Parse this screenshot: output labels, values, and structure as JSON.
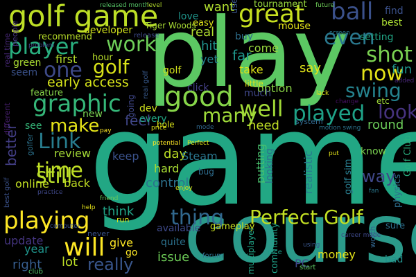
{
  "background": "#000000",
  "words": [
    {
      "text": "game",
      "color": "#22a784"
    },
    {
      "text": "play",
      "color": "#5cc863"
    },
    {
      "text": "course",
      "color": "#2b9a8a"
    },
    {
      "text": "golf game",
      "color": "#bddf26"
    },
    {
      "text": "great",
      "color": "#c7e020"
    },
    {
      "text": "good",
      "color": "#86d549"
    },
    {
      "text": "ball",
      "color": "#3b518b"
    },
    {
      "text": "player",
      "color": "#29af7f"
    },
    {
      "text": "work",
      "color": "#6ece58"
    },
    {
      "text": "one",
      "color": "#3e4a89"
    },
    {
      "text": "golf",
      "color": "#d8e219"
    },
    {
      "text": "graphic",
      "color": "#35b779"
    },
    {
      "text": "well",
      "color": "#a2da37"
    },
    {
      "text": "even",
      "color": "#2a788e"
    },
    {
      "text": "shot",
      "color": "#7ad151"
    },
    {
      "text": "now",
      "color": "#e5e419"
    },
    {
      "text": "swing",
      "color": "#25838e"
    },
    {
      "text": "played",
      "color": "#1fa287"
    },
    {
      "text": "look",
      "color": "#46337f"
    },
    {
      "text": "make",
      "color": "#e5e419"
    },
    {
      "text": "Link",
      "color": "#287d8e"
    },
    {
      "text": "many",
      "color": "#9fda3a"
    },
    {
      "text": "time",
      "color": "#c0df25"
    },
    {
      "text": "still",
      "color": "#b8de29"
    },
    {
      "text": "will",
      "color": "#fde725"
    },
    {
      "text": "playing",
      "color": "#fde725"
    },
    {
      "text": "thing",
      "color": "#31688e"
    },
    {
      "text": "Perfect Golf",
      "color": "#c2df23"
    },
    {
      "text": "really",
      "color": "#39568c"
    },
    {
      "text": "way",
      "color": "#3f4788"
    },
    {
      "text": "early access",
      "color": "#d5e21a"
    },
    {
      "text": "first",
      "color": "#b5de2b"
    },
    {
      "text": "better",
      "color": "#433e85"
    },
    {
      "text": "want",
      "color": "#b0dd2f"
    },
    {
      "text": "real",
      "color": "#b0dd2f"
    },
    {
      "text": "hit",
      "color": "#20928c"
    },
    {
      "text": "yet",
      "color": "#26828e"
    },
    {
      "text": "far",
      "color": "#1f968b"
    },
    {
      "text": "come",
      "color": "#99d83d"
    },
    {
      "text": "take",
      "color": "#dde318"
    },
    {
      "text": "say",
      "color": "#e2e418"
    },
    {
      "text": "fun",
      "color": "#1f948c"
    },
    {
      "text": "feel",
      "color": "#404688"
    },
    {
      "text": "need",
      "color": "#c0df25"
    },
    {
      "text": "review",
      "color": "#a5db36"
    },
    {
      "text": "round",
      "color": "#6ccd5a"
    },
    {
      "text": "hard",
      "color": "#a8db34"
    },
    {
      "text": "day",
      "color": "#bddf26"
    },
    {
      "text": "Steam",
      "color": "#2a768e"
    },
    {
      "text": "keep",
      "color": "#3b528b"
    },
    {
      "text": "back",
      "color": "#c2df23"
    },
    {
      "text": "online",
      "color": "#c2df23"
    },
    {
      "text": "control",
      "color": "#2c718e"
    },
    {
      "text": "think",
      "color": "#20a386"
    },
    {
      "text": "putting",
      "color": "#4ac16d"
    },
    {
      "text": "looking",
      "color": "#2d718e"
    },
    {
      "text": "realistic",
      "color": "#287c8e"
    },
    {
      "text": "know",
      "color": "#7ad151"
    },
    {
      "text": "give",
      "color": "#fde725"
    },
    {
      "text": "quite",
      "color": "#2c728e"
    },
    {
      "text": "go",
      "color": "#fde725"
    },
    {
      "text": "issue",
      "color": "#6ece58"
    },
    {
      "text": "lot",
      "color": "#bddf26"
    },
    {
      "text": "year",
      "color": "#1f948c"
    },
    {
      "text": "right",
      "color": "#365d8d"
    },
    {
      "text": "update",
      "color": "#453581"
    },
    {
      "text": "money",
      "color": "#e5e419"
    },
    {
      "text": "PC",
      "color": "#3f4889"
    },
    {
      "text": "bad",
      "color": "#21918c"
    },
    {
      "text": "sure",
      "color": "#2d708e"
    },
    {
      "text": "available",
      "color": "#3e4989"
    },
    {
      "text": "community",
      "color": "#1fa188"
    },
    {
      "text": "option",
      "color": "#8bd646"
    },
    {
      "text": "much",
      "color": "#3f4788"
    },
    {
      "text": "click",
      "color": "#433e85"
    },
    {
      "text": "little",
      "color": "#e5e419"
    },
    {
      "text": "feature",
      "color": "#86d549"
    },
    {
      "text": "seem",
      "color": "#3b528b"
    },
    {
      "text": "green",
      "color": "#aadc32"
    },
    {
      "text": "new",
      "color": "#7ad151"
    },
    {
      "text": "see",
      "color": "#35b779"
    },
    {
      "text": "dev",
      "color": "#d0e11c"
    },
    {
      "text": "every",
      "color": "#22a884"
    },
    {
      "text": "going",
      "color": "#3f4788"
    },
    {
      "text": "golf",
      "color": "#d2e21b"
    },
    {
      "text": "mouse",
      "color": "#e5e419"
    },
    {
      "text": "buy",
      "color": "#2e6f8e"
    },
    {
      "text": "setting",
      "color": "#21a685"
    },
    {
      "text": "find",
      "color": "#3b518b"
    },
    {
      "text": "best",
      "color": "#aadc32"
    },
    {
      "text": "developer",
      "color": "#d2e21b"
    },
    {
      "text": "recommend",
      "color": "#b8de29"
    },
    {
      "text": "hour",
      "color": "#b8de29"
    },
    {
      "text": "love",
      "color": "#1f958b"
    },
    {
      "text": "tournament",
      "color": "#98d83e"
    },
    {
      "text": "easy",
      "color": "#dde318"
    },
    {
      "text": "use",
      "color": "#39558c"
    },
    {
      "text": "Tiger Woods",
      "color": "#a8db34"
    },
    {
      "text": "golf sim",
      "color": "#287c8e"
    },
    {
      "text": "Golf Club",
      "color": "#29af7f"
    },
    {
      "text": "physics",
      "color": "#2e6e8e"
    },
    {
      "text": "gameplay",
      "color": "#c8e020"
    },
    {
      "text": "multiplayer",
      "color": "#20a386"
    },
    {
      "text": "etc",
      "color": "#a0da39"
    },
    {
      "text": "hole",
      "color": "#dae319"
    },
    {
      "text": "bug",
      "color": "#2e6d8e"
    },
    {
      "text": "real time",
      "color": "#482878"
    },
    {
      "text": "people",
      "color": "#46327e"
    },
    {
      "text": "different",
      "color": "#481f70"
    },
    {
      "text": "golfer",
      "color": "#2c738e"
    },
    {
      "text": "real golf",
      "color": "#38598c"
    },
    {
      "text": "system",
      "color": "#31688e"
    },
    {
      "text": "start",
      "color": "#5ec962"
    },
    {
      "text": "run",
      "color": "#dae319"
    },
    {
      "text": "never",
      "color": "#3a538b"
    },
    {
      "text": "worth",
      "color": "#32658e"
    },
    {
      "text": "nice",
      "color": "#1f9e89"
    },
    {
      "text": "forum",
      "color": "#2d718e"
    },
    {
      "text": "club",
      "color": "#52c569"
    },
    {
      "text": "best golf",
      "color": "#3b528b"
    },
    {
      "text": "release",
      "color": "#3e4a89"
    },
    {
      "text": "released month",
      "color": "#56c667"
    },
    {
      "text": "level",
      "color": "#b5de2b"
    },
    {
      "text": "price",
      "color": "#e2e418"
    },
    {
      "text": "Perfect",
      "color": "#e2e418"
    },
    {
      "text": "put",
      "color": "#e5e419"
    },
    {
      "text": "fan",
      "color": "#2a788e"
    },
    {
      "text": "mode",
      "color": "#31688e"
    },
    {
      "text": "lack",
      "color": "#e5e419"
    },
    {
      "text": "future",
      "color": "#6ece58"
    },
    {
      "text": "pay",
      "color": "#fde725"
    },
    {
      "text": "added",
      "color": "#482677"
    },
    {
      "text": "change",
      "color": "#471063"
    },
    {
      "text": "enjoy",
      "color": "#dde318"
    },
    {
      "text": "problem",
      "color": "#3f4788"
    },
    {
      "text": "using",
      "color": "#39568c"
    },
    {
      "text": "potential",
      "color": "#fde725"
    },
    {
      "text": "computer",
      "color": "#3b528b"
    },
    {
      "text": "career mode",
      "color": "#3e4989"
    },
    {
      "text": "screen",
      "color": "#2a788e"
    },
    {
      "text": "motion swing",
      "color": "#2c738e"
    },
    {
      "text": "practice",
      "color": "#3f4889"
    },
    {
      "text": "help",
      "color": "#e5e419"
    },
    {
      "text": "friend",
      "color": "#6ccd5a"
    }
  ]
}
